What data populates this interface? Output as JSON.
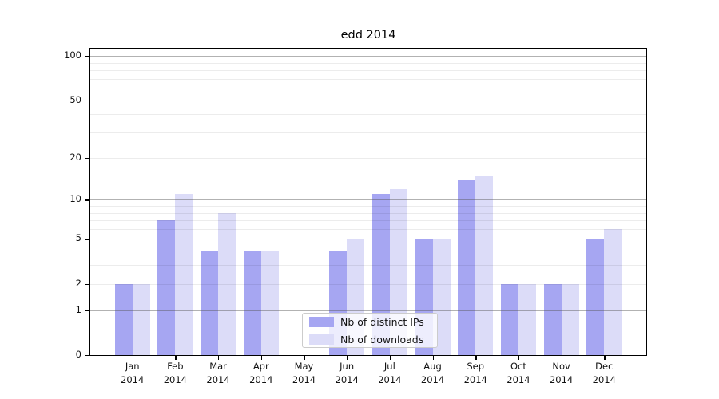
{
  "title": "edd 2014",
  "chart_data": {
    "type": "bar",
    "title": "edd 2014",
    "categories": [
      "Jan 2014",
      "Feb 2014",
      "Mar 2014",
      "Apr 2014",
      "May 2014",
      "Jun 2014",
      "Jul 2014",
      "Aug 2014",
      "Sep 2014",
      "Oct 2014",
      "Nov 2014",
      "Dec 2014"
    ],
    "series": [
      {
        "name": "Nb of distinct IPs",
        "color": "#a6a6f2",
        "values": [
          2,
          7,
          4,
          4,
          0,
          4,
          11,
          5,
          14,
          2,
          2,
          5
        ]
      },
      {
        "name": "Nb of downloads",
        "color": "#dcdcf8",
        "values": [
          2,
          11,
          8,
          4,
          0,
          5,
          12,
          5,
          15,
          2,
          2,
          6
        ]
      }
    ],
    "xlabel": "",
    "ylabel": "",
    "yscale": "log1p",
    "ylim": [
      0,
      112
    ],
    "y_ticks": [
      0,
      1,
      2,
      5,
      10,
      20,
      50,
      100
    ],
    "y_tick_labels": [
      "0",
      "1",
      "2",
      "5",
      "10",
      "20",
      "50",
      "100"
    ],
    "y_major_gridlines": [
      1,
      10,
      100
    ],
    "y_minor_gridlines": [
      2,
      3,
      4,
      5,
      6,
      7,
      8,
      9,
      20,
      30,
      40,
      50,
      60,
      70,
      80,
      90
    ],
    "grid": true,
    "legend_position": "lower center"
  },
  "colors": {
    "background": "#ffffff",
    "bar_dark": "#a6a6f2",
    "bar_light": "#dcdcf8",
    "major_grid": "#b5b5b5",
    "minor_grid": "#ececec",
    "axis": "#000000"
  }
}
